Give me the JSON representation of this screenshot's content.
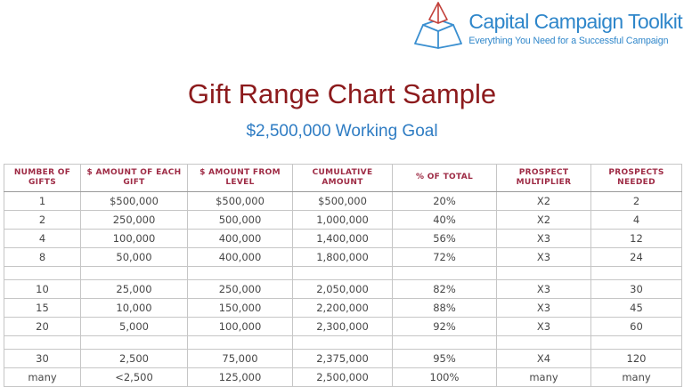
{
  "logo": {
    "name": "Capital Campaign Toolkit",
    "tagline": "Everything You Need for a Successful Campaign"
  },
  "title": "Gift Range Chart Sample",
  "subtitle": "$2,500,000 Working Goal",
  "colors": {
    "title_red": "#8c1a1c",
    "subtitle_blue": "#2e7cc3",
    "logo_blue": "#2e86ca",
    "logo_red": "#c2413b",
    "header_maroon": "#9e2b45",
    "body_text": "#474747",
    "outer_border": "#7f7f7f",
    "inner_border": "#c6c6c6"
  },
  "table": {
    "headers": [
      "Number of Gifts",
      "$ Amount of Each Gift",
      "$ Amount from Level",
      "Cumulative Amount",
      "% of Total",
      "Prospect Multiplier",
      "Prospects Needed"
    ],
    "rows": [
      {
        "cells": [
          "1",
          "$500,000",
          "$500,000",
          "$500,000",
          "20%",
          "X2",
          "2"
        ]
      },
      {
        "cells": [
          "2",
          "250,000",
          "500,000",
          "1,000,000",
          "40%",
          "X2",
          "4"
        ]
      },
      {
        "cells": [
          "4",
          "100,000",
          "400,000",
          "1,400,000",
          "56%",
          "X3",
          "12"
        ]
      },
      {
        "cells": [
          "8",
          "50,000",
          "400,000",
          "1,800,000",
          "72%",
          "X3",
          "24"
        ]
      },
      {
        "cells": [
          "",
          "",
          "",
          "",
          "",
          "",
          ""
        ],
        "spacer": true
      },
      {
        "cells": [
          "10",
          "25,000",
          "250,000",
          "2,050,000",
          "82%",
          "X3",
          "30"
        ]
      },
      {
        "cells": [
          "15",
          "10,000",
          "150,000",
          "2,200,000",
          "88%",
          "X3",
          "45"
        ]
      },
      {
        "cells": [
          "20",
          "5,000",
          "100,000",
          "2,300,000",
          "92%",
          "X3",
          "60"
        ]
      },
      {
        "cells": [
          "",
          "",
          "",
          "",
          "",
          "",
          ""
        ],
        "spacer": true
      },
      {
        "cells": [
          "30",
          "2,500",
          "75,000",
          "2,375,000",
          "95%",
          "X4",
          "120"
        ]
      },
      {
        "cells": [
          "many",
          "<2,500",
          "125,000",
          "2,500,000",
          "100%",
          "many",
          "many"
        ]
      }
    ]
  }
}
